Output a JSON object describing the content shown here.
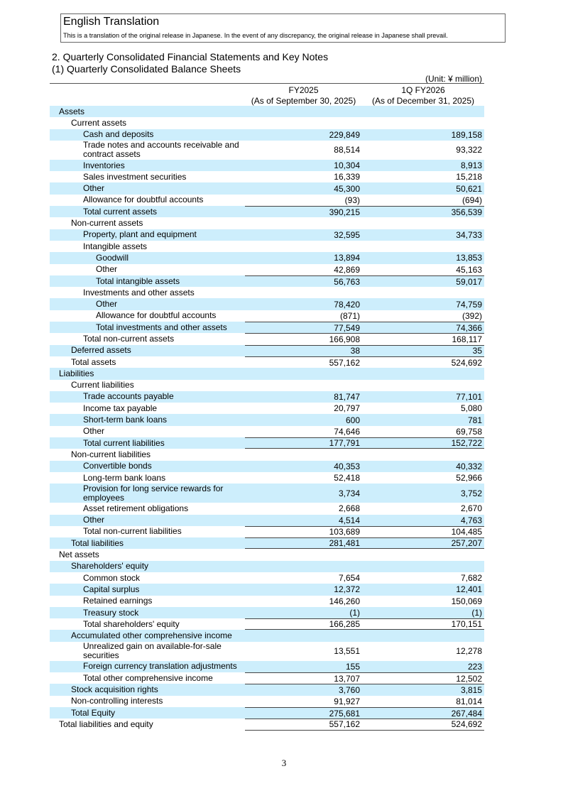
{
  "header": {
    "title": "English Translation",
    "note": "This is a translation of the original release in Japanese. In the event of any discrepancy, the original release in Japanese shall prevail."
  },
  "section": "2. Quarterly Consolidated Financial Statements and Key Notes",
  "subsection": "(1) Quarterly Consolidated Balance Sheets",
  "unit": "(Unit: ¥ million)",
  "columns": [
    {
      "period": "FY2025",
      "date": "(As of September 30, 2025)"
    },
    {
      "period": "1Q FY2026",
      "date": "(As of December 31, 2025)"
    }
  ],
  "rows": [
    {
      "label": "Assets",
      "level": 0,
      "shade": true
    },
    {
      "label": "Current assets",
      "level": 1
    },
    {
      "label": "Cash and deposits",
      "level": 2,
      "shade": true,
      "values": [
        "229,849",
        "189,158"
      ]
    },
    {
      "label": "Trade notes and accounts receivable and contract assets",
      "level": 2,
      "values": [
        "88,514",
        "93,322"
      ],
      "tall": true
    },
    {
      "label": "Inventories",
      "level": 2,
      "shade": true,
      "values": [
        "10,304",
        "8,913"
      ]
    },
    {
      "label": "Sales investment securities",
      "level": 2,
      "values": [
        "16,339",
        "15,218"
      ]
    },
    {
      "label": "Other",
      "level": 2,
      "shade": true,
      "values": [
        "45,300",
        "50,621"
      ]
    },
    {
      "label": "Allowance for doubtful accounts",
      "level": 2,
      "values": [
        "(93)",
        "(694)"
      ]
    },
    {
      "label": "Total current assets",
      "level": 2,
      "shade": true,
      "rule": true,
      "values": [
        "390,215",
        "356,539"
      ]
    },
    {
      "label": "Non-current assets",
      "level": 1
    },
    {
      "label": "Property, plant and equipment",
      "level": 2,
      "shade": true,
      "values": [
        "32,595",
        "34,733"
      ]
    },
    {
      "label": "Intangible assets",
      "level": 2
    },
    {
      "label": "Goodwill",
      "level": 3,
      "shade": true,
      "values": [
        "13,894",
        "13,853"
      ]
    },
    {
      "label": "Other",
      "level": 3,
      "values": [
        "42,869",
        "45,163"
      ]
    },
    {
      "label": "Total intangible assets",
      "level": 3,
      "shade": true,
      "rule": true,
      "values": [
        "56,763",
        "59,017"
      ]
    },
    {
      "label": "Investments and other assets",
      "level": 2
    },
    {
      "label": "Other",
      "level": 3,
      "shade": true,
      "values": [
        "78,420",
        "74,759"
      ]
    },
    {
      "label": "Allowance for doubtful accounts",
      "level": 3,
      "values": [
        "(871)",
        "(392)"
      ]
    },
    {
      "label": "Total investments and other assets",
      "level": 3,
      "shade": true,
      "rule": true,
      "values": [
        "77,549",
        "74,366"
      ]
    },
    {
      "label": "Total non-current assets",
      "level": 2,
      "rule": true,
      "values": [
        "166,908",
        "168,117"
      ]
    },
    {
      "label": "Deferred assets",
      "level": 1,
      "shade": true,
      "rule": true,
      "values": [
        "38",
        "35"
      ]
    },
    {
      "label": "Total assets",
      "level": 1,
      "rule": true,
      "values": [
        "557,162",
        "524,692"
      ]
    },
    {
      "label": "Liabilities",
      "level": 0,
      "shade": true
    },
    {
      "label": "Current liabilities",
      "level": 1
    },
    {
      "label": "Trade accounts payable",
      "level": 2,
      "shade": true,
      "values": [
        "81,747",
        "77,101"
      ]
    },
    {
      "label": "Income tax payable",
      "level": 2,
      "values": [
        "20,797",
        "5,080"
      ]
    },
    {
      "label": "Short-term bank loans",
      "level": 2,
      "shade": true,
      "values": [
        "600",
        "781"
      ]
    },
    {
      "label": "Other",
      "level": 2,
      "values": [
        "74,646",
        "69,758"
      ]
    },
    {
      "label": "Total current liabilities",
      "level": 2,
      "shade": true,
      "rule": true,
      "rb": true,
      "values": [
        "177,791",
        "152,722"
      ]
    },
    {
      "label": "Non-current liabilities",
      "level": 1
    },
    {
      "label": "Convertible bonds",
      "level": 2,
      "shade": true,
      "values": [
        "40,353",
        "40,332"
      ]
    },
    {
      "label": "Long-term bank loans",
      "level": 2,
      "values": [
        "52,418",
        "52,966"
      ]
    },
    {
      "label": "Provision for long service rewards for employees",
      "level": 2,
      "shade": true,
      "values": [
        "3,734",
        "3,752"
      ],
      "tall": true
    },
    {
      "label": "Asset retirement obligations",
      "level": 2,
      "values": [
        "2,668",
        "2,670"
      ]
    },
    {
      "label": "Other",
      "level": 2,
      "shade": true,
      "values": [
        "4,514",
        "4,763"
      ]
    },
    {
      "label": "Total non-current liabilities",
      "level": 2,
      "rule": true,
      "values": [
        "103,689",
        "104,485"
      ]
    },
    {
      "label": "Total liabilities",
      "level": 1,
      "shade": true,
      "rule": true,
      "rb": true,
      "values": [
        "281,481",
        "257,207"
      ]
    },
    {
      "label": "Net assets",
      "level": 0
    },
    {
      "label": "Shareholders' equity",
      "level": 1,
      "shade": true
    },
    {
      "label": "Common stock",
      "level": 2,
      "values": [
        "7,654",
        "7,682"
      ]
    },
    {
      "label": "Capital surplus",
      "level": 2,
      "shade": true,
      "values": [
        "12,372",
        "12,401"
      ]
    },
    {
      "label": "Retained earnings",
      "level": 2,
      "values": [
        "146,260",
        "150,069"
      ]
    },
    {
      "label": "Treasury stock",
      "level": 2,
      "shade": true,
      "values": [
        "(1)",
        "(1)"
      ]
    },
    {
      "label": "Total shareholders' equity",
      "level": 2,
      "rule": true,
      "rb": true,
      "values": [
        "166,285",
        "170,151"
      ]
    },
    {
      "label": "Accumulated other comprehensive income",
      "level": 1,
      "shade": true
    },
    {
      "label": "Unrealized gain on available-for-sale securities",
      "level": 2,
      "values": [
        "13,551",
        "12,278"
      ],
      "tall": true
    },
    {
      "label": "Foreign currency translation adjustments",
      "level": 2,
      "shade": true,
      "values": [
        "155",
        "223"
      ]
    },
    {
      "label": "Total other comprehensive income",
      "level": 2,
      "rule": true,
      "values": [
        "13,707",
        "12,502"
      ]
    },
    {
      "label": "Stock acquisition rights",
      "level": 1,
      "shade": true,
      "rule": true,
      "values": [
        "3,760",
        "3,815"
      ]
    },
    {
      "label": "Non-controlling interests",
      "level": 1,
      "values": [
        "91,927",
        "81,014"
      ]
    },
    {
      "label": "Total Equity",
      "level": 1,
      "shade": true,
      "rule": true,
      "values": [
        "275,681",
        "267,484"
      ]
    },
    {
      "label": "Total liabilities and equity",
      "level": 0,
      "rule": true,
      "rb": true,
      "values": [
        "557,162",
        "524,692"
      ]
    }
  ],
  "page_number": "3"
}
